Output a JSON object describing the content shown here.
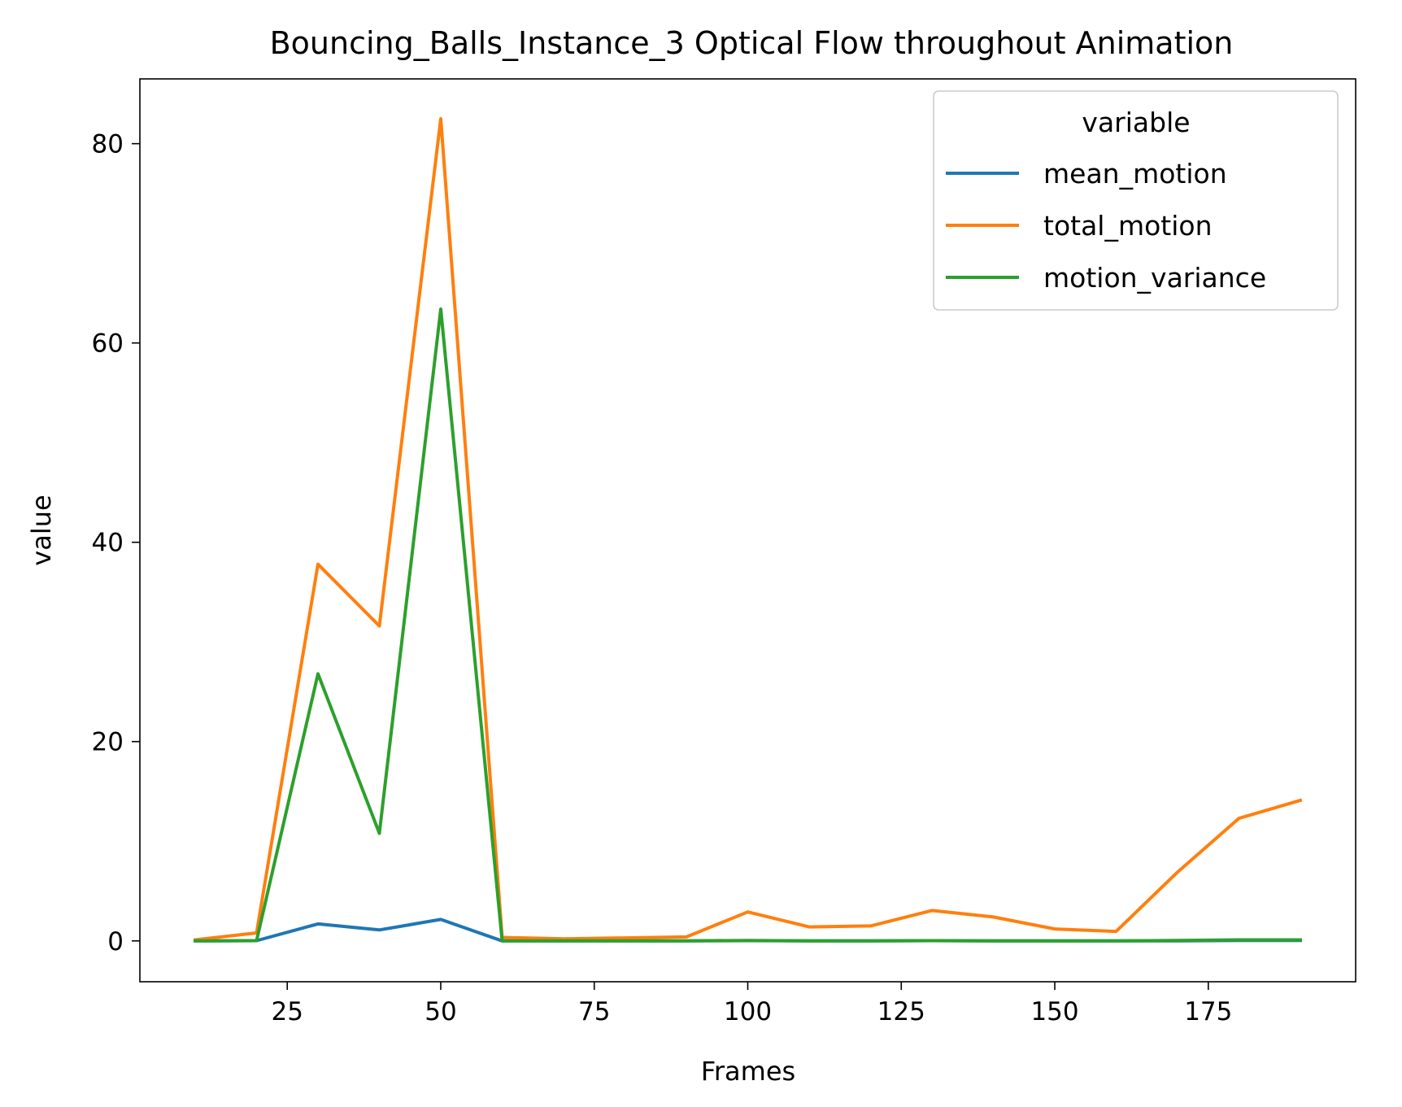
{
  "chart_data": {
    "type": "line",
    "title": "Bouncing_Balls_Instance_3 Optical Flow throughout Animation",
    "xlabel": "Frames",
    "ylabel": "value",
    "xlim": [
      1,
      199
    ],
    "ylim": [
      -4.1,
      86.5
    ],
    "x_ticks": [
      25,
      50,
      75,
      100,
      125,
      150,
      175
    ],
    "y_ticks": [
      0,
      20,
      40,
      60,
      80
    ],
    "x": [
      10,
      20,
      30,
      40,
      50,
      60,
      70,
      80,
      90,
      100,
      110,
      120,
      130,
      140,
      150,
      160,
      170,
      180,
      190
    ],
    "series": [
      {
        "name": "mean_motion",
        "color": "#1f77b4",
        "values": [
          0.0,
          0.02,
          1.7,
          1.1,
          2.15,
          0.0,
          0.0,
          0.0,
          0.0,
          0.02,
          0.0,
          0.0,
          0.02,
          0.0,
          0.0,
          0.0,
          0.0,
          0.05,
          0.05
        ]
      },
      {
        "name": "total_motion",
        "color": "#ff7f0e",
        "values": [
          0.1,
          0.8,
          37.8,
          31.6,
          82.5,
          0.35,
          0.2,
          0.3,
          0.4,
          2.9,
          1.4,
          1.5,
          3.05,
          2.4,
          1.2,
          0.95,
          6.9,
          12.3,
          14.1
        ]
      },
      {
        "name": "motion_variance",
        "color": "#2ca02c",
        "values": [
          0.0,
          0.02,
          26.8,
          10.8,
          63.4,
          0.0,
          0.0,
          0.0,
          0.0,
          0.05,
          0.0,
          0.0,
          0.02,
          0.0,
          0.0,
          0.0,
          0.05,
          0.1,
          0.1
        ]
      }
    ],
    "legend": {
      "title": "variable",
      "placement": "top-right"
    },
    "grid": false
  }
}
